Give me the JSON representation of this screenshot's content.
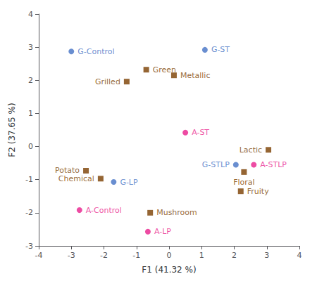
{
  "chart_data": {
    "type": "scatter",
    "xlabel": "F1 (41.32 %)",
    "ylabel": "F2 (37.65 %)",
    "xlim": [
      -4,
      4
    ],
    "ylim": [
      -3,
      4
    ],
    "xticks": [
      -4,
      -3,
      -2,
      -1,
      0,
      1,
      2,
      3,
      4
    ],
    "yticks": [
      -3,
      -2,
      -1,
      0,
      1,
      2,
      3,
      4
    ],
    "grid": false,
    "series": [
      {
        "marker": "square",
        "color": "#7B3F00",
        "x": [
          -0.7,
          -1.3,
          0.15,
          3.05,
          2.3,
          2.2,
          -2.55,
          -2.1,
          -0.58
        ],
        "y": [
          2.32,
          1.96,
          2.15,
          -0.1,
          -0.77,
          -1.35,
          -0.73,
          -0.97,
          -2.0
        ],
        "labels": [
          "Green",
          "Grilled",
          "Metallic",
          "Lactic",
          "Floral",
          "Fruity",
          "Potato",
          "Chemical",
          "Mushroom"
        ]
      },
      {
        "marker": "circle",
        "colors": [
          "#4472C4",
          "#4472C4",
          "#4472C4",
          "#4472C4",
          "#E91E8C",
          "#E91E8C",
          "#E91E8C",
          "#E91E8C"
        ],
        "x": [
          -3.0,
          1.1,
          -1.7,
          2.05,
          0.5,
          -2.75,
          -0.65,
          2.6
        ],
        "y": [
          2.87,
          2.92,
          -1.07,
          -0.55,
          0.42,
          -1.92,
          -2.57,
          -0.55
        ],
        "labels": [
          "G-Control",
          "G-ST",
          "G-LP",
          "G-STLP",
          "A-ST",
          "A-Control",
          "A-LP",
          "A-STLP"
        ]
      }
    ]
  }
}
